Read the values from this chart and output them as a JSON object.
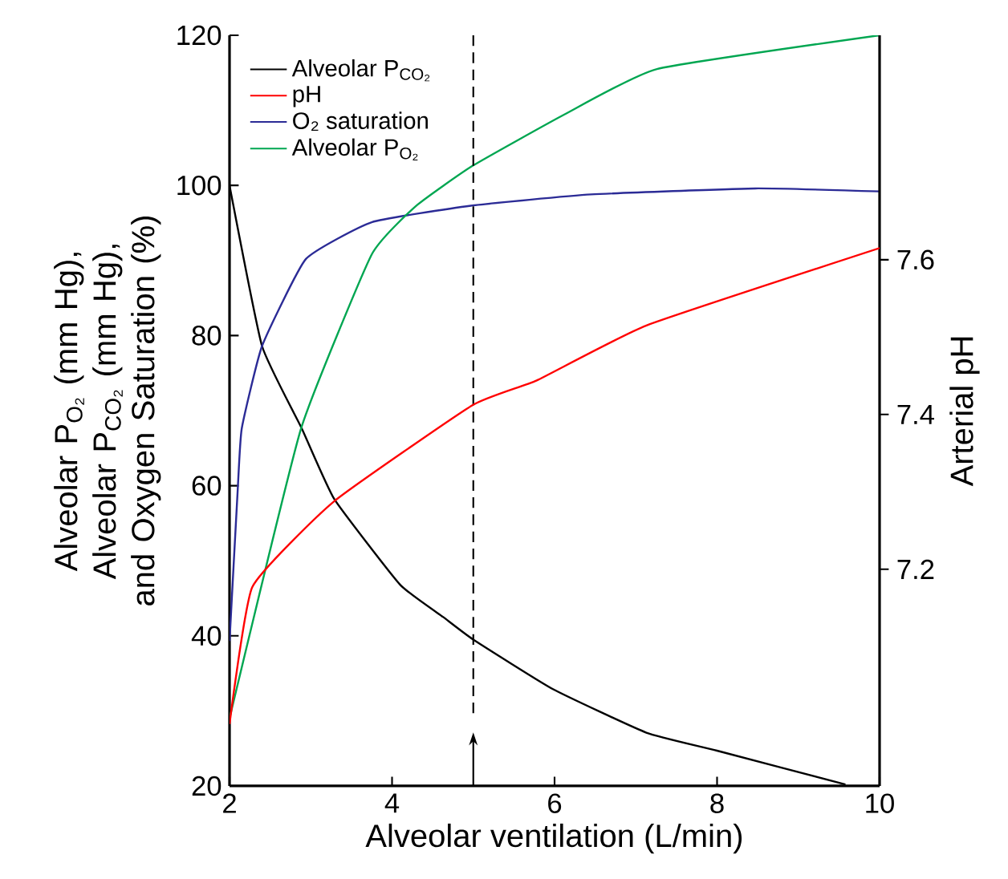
{
  "chart_data": {
    "type": "line",
    "xlabel": "Alveolar ventilation (L/min)",
    "ylabel": "Alveolar P$_{O₂}$ (mm Hg), Alveolar P$_{CO₂}$ (mm Hg), and Oxygen Saturation (%)",
    "y2label": "Arterial pH",
    "xlim": [
      2,
      10
    ],
    "xticks": [
      2,
      4,
      6,
      8,
      10
    ],
    "ylim": [
      20,
      120
    ],
    "yticks": [
      20,
      40,
      60,
      80,
      100,
      120
    ],
    "y2lim": [
      6.92,
      7.89
    ],
    "y2ticks": [
      7.2,
      7.4,
      7.6
    ],
    "legend": "top left",
    "ref_lines": [
      {
        "axis": "x",
        "value": 5,
        "line_style": "dashed",
        "color": "#000000"
      }
    ],
    "series": [
      {
        "name": "Alveolar P$_{CO₂}$",
        "color": "#000000",
        "x": [
          2,
          2.4,
          2.89,
          3.29,
          4.1,
          4.63,
          5,
          5.98,
          7.13,
          8.0,
          9.58
        ],
        "values": [
          100,
          78.6,
          67.6,
          58.2,
          46.8,
          42.5,
          39.5,
          32.9,
          27.1,
          24.7,
          20.2
        ]
      },
      {
        "name": "pH",
        "color": "#ff0000",
        "axis": "y2",
        "x": [
          2,
          2.28,
          3.29,
          4.99,
          5.78,
          7.13,
          10
        ],
        "values": [
          7.0,
          7.177,
          7.288,
          7.412,
          7.444,
          7.515,
          7.615
        ]
      },
      {
        "name": "O₂ saturation",
        "color": "#2b2b96",
        "x": [
          2,
          2.1,
          2.15,
          2.4,
          2.94,
          3.75,
          4.97,
          6.45,
          8.47,
          10
        ],
        "values": [
          39.3,
          59.3,
          67.6,
          78.6,
          90.2,
          95.1,
          97.3,
          98.8,
          99.6,
          99.2
        ]
      },
      {
        "name": "Alveolar P$_{O₂}$",
        "color": "#00a651",
        "x": [
          2,
          2.88,
          3.75,
          4.3,
          4.99,
          6.13,
          7.26,
          10
        ],
        "values": [
          29,
          67.6,
          90.8,
          97.3,
          102.6,
          109.5,
          115.5,
          120
        ]
      }
    ]
  }
}
